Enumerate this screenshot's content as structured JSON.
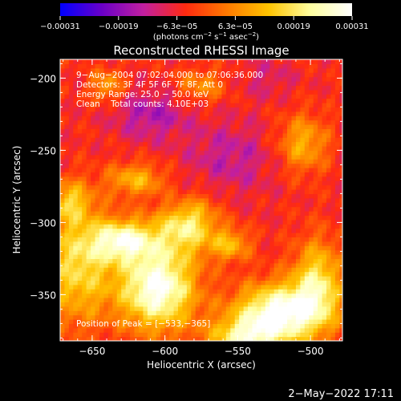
{
  "chart_data": {
    "type": "heatmap",
    "title": "Reconstructed RHESSI Image",
    "xlabel": "Heliocentric X (arcsec)",
    "ylabel": "Heliocentric Y (arcsec)",
    "xlim": [
      -672,
      -478
    ],
    "ylim": [
      -382,
      -187
    ],
    "x_ticks": [
      {
        "value": -650,
        "label": "−650"
      },
      {
        "value": -600,
        "label": "−600"
      },
      {
        "value": -550,
        "label": "−550"
      },
      {
        "value": -500,
        "label": "−500"
      }
    ],
    "y_ticks": [
      {
        "value": -200,
        "label": "−200"
      },
      {
        "value": -250,
        "label": "−250"
      },
      {
        "value": -300,
        "label": "−300"
      },
      {
        "value": -350,
        "label": "−350"
      }
    ],
    "colorbar": {
      "min": -0.00031,
      "max": 0.00031,
      "ticks": [
        "−0.00031",
        "−0.00019",
        "−6.3e−05",
        "6.3e−05",
        "0.00019",
        "0.00031"
      ],
      "unit_main": "(photons cm",
      "unit_exp1": "−2",
      "unit_mid": " s",
      "unit_exp2": "−1",
      "unit_end": " asec",
      "unit_exp3": "−2",
      "unit_close": ")",
      "colors": [
        "#0000ff",
        "#6a00c8",
        "#c21fa0",
        "#ff2a10",
        "#ff7a00",
        "#ffc400",
        "#ffffa0",
        "#ffffff"
      ]
    },
    "annotations": [
      "9−Aug−2004 07:02:04.000 to 07:06:36.000",
      "Detectors: 3F 4F 5F 6F 7F 8F, Att 0",
      "Energy Range: 25.0 − 50.0 keV",
      "Clean    Total counts: 4.10E+03"
    ],
    "peak_label": "Position of Peak = [−533,−365]",
    "peak": [
      -533,
      -365
    ],
    "intensity_field": {
      "baseline": -5e-05,
      "sources": [
        {
          "x": -605,
          "y": -345,
          "sx": 18,
          "sy": 20,
          "a": 0.00036
        },
        {
          "x": -628,
          "y": -312,
          "sx": 16,
          "sy": 10,
          "a": 0.00028
        },
        {
          "x": -585,
          "y": -300,
          "sx": 14,
          "sy": 14,
          "a": 0.00026
        },
        {
          "x": -660,
          "y": -330,
          "sx": 18,
          "sy": 28,
          "a": 0.00022
        },
        {
          "x": -520,
          "y": -362,
          "sx": 22,
          "sy": 14,
          "a": 0.00036
        },
        {
          "x": -545,
          "y": -380,
          "sx": 18,
          "sy": 10,
          "a": 0.00024
        },
        {
          "x": -495,
          "y": -340,
          "sx": 12,
          "sy": 20,
          "a": 0.00022
        },
        {
          "x": -555,
          "y": -315,
          "sx": 10,
          "sy": 8,
          "a": 0.00016
        },
        {
          "x": -620,
          "y": -270,
          "sx": 14,
          "sy": 8,
          "a": 0.00016
        },
        {
          "x": -665,
          "y": -285,
          "sx": 10,
          "sy": 10,
          "a": 0.00016
        },
        {
          "x": -640,
          "y": -205,
          "sx": 8,
          "sy": 8,
          "a": 0.00014
        },
        {
          "x": -505,
          "y": -245,
          "sx": 12,
          "sy": 14,
          "a": 0.00016
        },
        {
          "x": -575,
          "y": -205,
          "sx": 12,
          "sy": 8,
          "a": 0.00012
        },
        {
          "x": -610,
          "y": -225,
          "sx": 18,
          "sy": 12,
          "a": -0.0001
        },
        {
          "x": -555,
          "y": -255,
          "sx": 22,
          "sy": 18,
          "a": -8e-05
        },
        {
          "x": -590,
          "y": -285,
          "sx": 10,
          "sy": 10,
          "a": -6e-05
        },
        {
          "x": -530,
          "y": -200,
          "sx": 14,
          "sy": 10,
          "a": -5e-05
        }
      ]
    }
  },
  "footer": {
    "timestamp": "2−May−2022 17:11"
  }
}
